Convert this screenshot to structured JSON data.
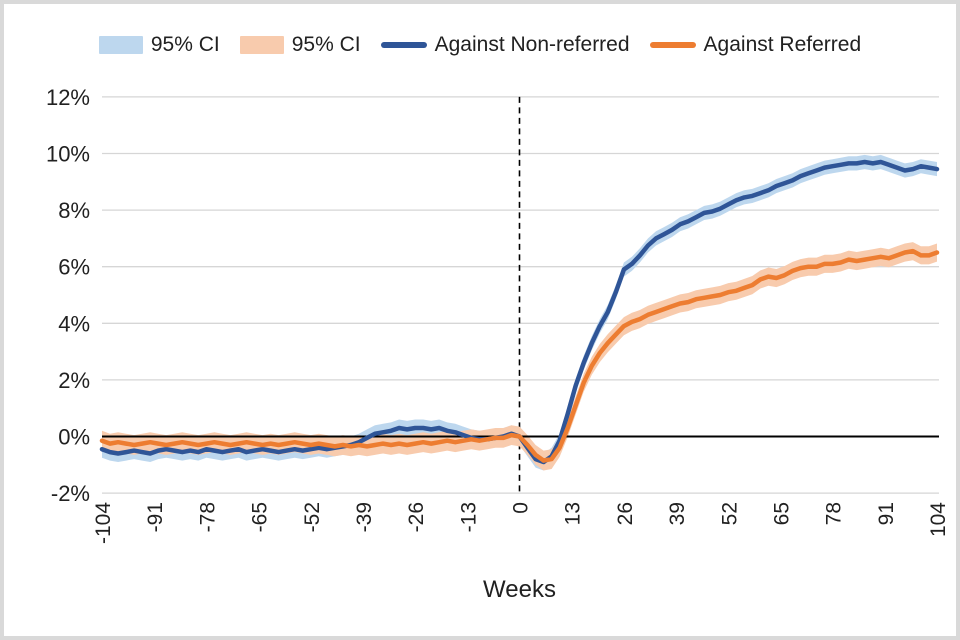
{
  "frame": {
    "border_color": "#d9d9d9",
    "background": "#ffffff"
  },
  "legend": {
    "items": [
      {
        "label": "95% CI",
        "type": "band",
        "color": "#BDD7EE"
      },
      {
        "label": "95% CI",
        "type": "band",
        "color": "#F8CBAD"
      },
      {
        "label": "Against Non-referred",
        "type": "line",
        "color": "#2F5597"
      },
      {
        "label": "Against Referred",
        "type": "line",
        "color": "#ED7D31"
      }
    ]
  },
  "chart_data": {
    "type": "line",
    "title": "",
    "xlabel": "Weeks",
    "ylabel": "",
    "xlim": [
      -104,
      104
    ],
    "ylim": [
      -2,
      12
    ],
    "x_start": -104,
    "x_step": 2,
    "x_ticks": [
      -104,
      -91,
      -78,
      -65,
      -52,
      -39,
      -26,
      -13,
      0,
      13,
      26,
      39,
      52,
      65,
      78,
      91,
      104
    ],
    "y_ticks": [
      12,
      10,
      8,
      6,
      4,
      2,
      0,
      -2
    ],
    "y_tick_labels": [
      "12%",
      "10%",
      "8%",
      "6%",
      "4%",
      "2%",
      "0%",
      "-2%"
    ],
    "grid": "horizontal",
    "grid_color": "#D6D6D6",
    "zero_line": {
      "y": 0,
      "color": "#000000"
    },
    "event_line": {
      "x": 0,
      "style": "dashed",
      "color": "#000000"
    },
    "ci_switch_week": 8,
    "legend_position": "top",
    "series": [
      {
        "name": "Against Non-referred",
        "color": "#2F5597",
        "ci_label": "95% CI",
        "ci_color": "#BDD7EE",
        "ci_pre": 0.3,
        "ci_post": 0.25,
        "values": [
          -0.45,
          -0.55,
          -0.6,
          -0.55,
          -0.5,
          -0.55,
          -0.6,
          -0.5,
          -0.45,
          -0.5,
          -0.55,
          -0.5,
          -0.55,
          -0.45,
          -0.5,
          -0.55,
          -0.5,
          -0.45,
          -0.55,
          -0.5,
          -0.45,
          -0.5,
          -0.55,
          -0.5,
          -0.45,
          -0.5,
          -0.45,
          -0.4,
          -0.45,
          -0.4,
          -0.35,
          -0.3,
          -0.2,
          -0.05,
          0.1,
          0.15,
          0.2,
          0.3,
          0.25,
          0.3,
          0.3,
          0.25,
          0.3,
          0.2,
          0.15,
          0.05,
          -0.05,
          -0.1,
          -0.1,
          -0.05,
          0,
          0.1,
          0,
          -0.4,
          -0.8,
          -0.9,
          -0.7,
          -0.15,
          0.8,
          1.8,
          2.6,
          3.3,
          3.9,
          4.4,
          5.1,
          5.9,
          6.1,
          6.4,
          6.75,
          7,
          7.15,
          7.3,
          7.5,
          7.6,
          7.75,
          7.9,
          7.95,
          8.05,
          8.2,
          8.35,
          8.45,
          8.5,
          8.6,
          8.7,
          8.85,
          8.95,
          9.05,
          9.2,
          9.3,
          9.4,
          9.5,
          9.55,
          9.6,
          9.65,
          9.65,
          9.7,
          9.65,
          9.7,
          9.6,
          9.5,
          9.4,
          9.45,
          9.55,
          9.5,
          9.45
        ]
      },
      {
        "name": "Against Referred",
        "color": "#ED7D31",
        "ci_label": "95% CI",
        "ci_color": "#F8CBAD",
        "ci_pre": 0.35,
        "ci_post": 0.32,
        "values": [
          -0.15,
          -0.25,
          -0.2,
          -0.25,
          -0.3,
          -0.25,
          -0.2,
          -0.25,
          -0.3,
          -0.25,
          -0.2,
          -0.25,
          -0.3,
          -0.25,
          -0.2,
          -0.25,
          -0.3,
          -0.25,
          -0.2,
          -0.25,
          -0.3,
          -0.25,
          -0.3,
          -0.25,
          -0.2,
          -0.25,
          -0.3,
          -0.25,
          -0.3,
          -0.35,
          -0.3,
          -0.35,
          -0.3,
          -0.35,
          -0.3,
          -0.25,
          -0.3,
          -0.25,
          -0.3,
          -0.25,
          -0.2,
          -0.25,
          -0.2,
          -0.15,
          -0.2,
          -0.15,
          -0.1,
          -0.15,
          -0.1,
          -0.05,
          -0.05,
          0.05,
          0,
          -0.3,
          -0.65,
          -0.85,
          -0.8,
          -0.4,
          0.3,
          1.1,
          1.9,
          2.5,
          2.95,
          3.3,
          3.6,
          3.9,
          4.05,
          4.15,
          4.3,
          4.4,
          4.5,
          4.6,
          4.7,
          4.75,
          4.85,
          4.9,
          4.95,
          5,
          5.1,
          5.15,
          5.25,
          5.35,
          5.55,
          5.65,
          5.6,
          5.7,
          5.85,
          5.95,
          6,
          6,
          6.1,
          6.1,
          6.15,
          6.25,
          6.2,
          6.25,
          6.3,
          6.35,
          6.3,
          6.4,
          6.5,
          6.55,
          6.4,
          6.4,
          6.5
        ]
      }
    ]
  }
}
